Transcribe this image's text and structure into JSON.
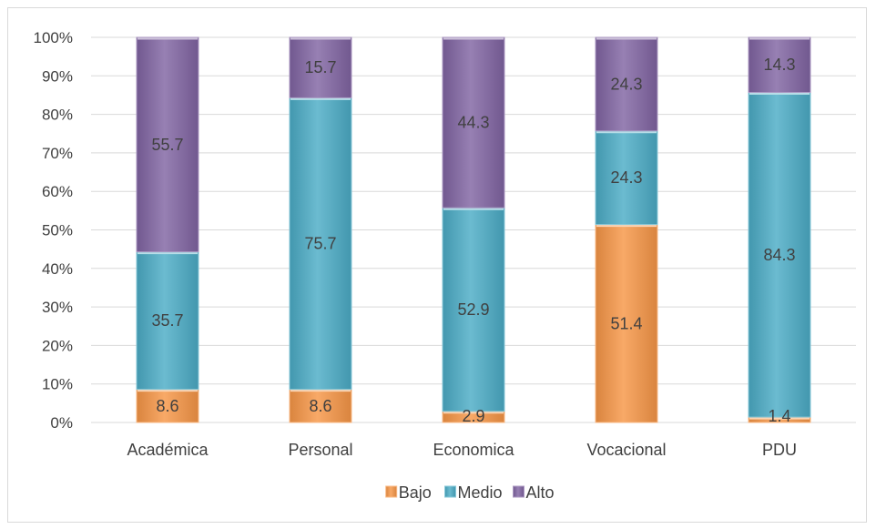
{
  "chart_data": {
    "type": "bar",
    "stacked": "percent",
    "categories": [
      "Académica",
      "Personal",
      "Economica",
      "Vocacional",
      "PDU"
    ],
    "series": [
      {
        "name": "Bajo",
        "values": [
          8.6,
          8.6,
          2.9,
          51.4,
          1.4
        ],
        "color": "#F79646"
      },
      {
        "name": "Medio",
        "values": [
          35.7,
          75.7,
          52.9,
          24.3,
          84.3
        ],
        "color": "#4BACC6"
      },
      {
        "name": "Alto",
        "values": [
          55.7,
          15.7,
          44.3,
          24.3,
          14.3
        ],
        "color": "#8064A2"
      }
    ],
    "ylim": [
      0,
      100
    ],
    "yticks": [
      "0%",
      "10%",
      "20%",
      "30%",
      "40%",
      "50%",
      "60%",
      "70%",
      "80%",
      "90%",
      "100%"
    ],
    "grid": true,
    "legend_position": "bottom",
    "title": "",
    "xlabel": "",
    "ylabel": ""
  }
}
